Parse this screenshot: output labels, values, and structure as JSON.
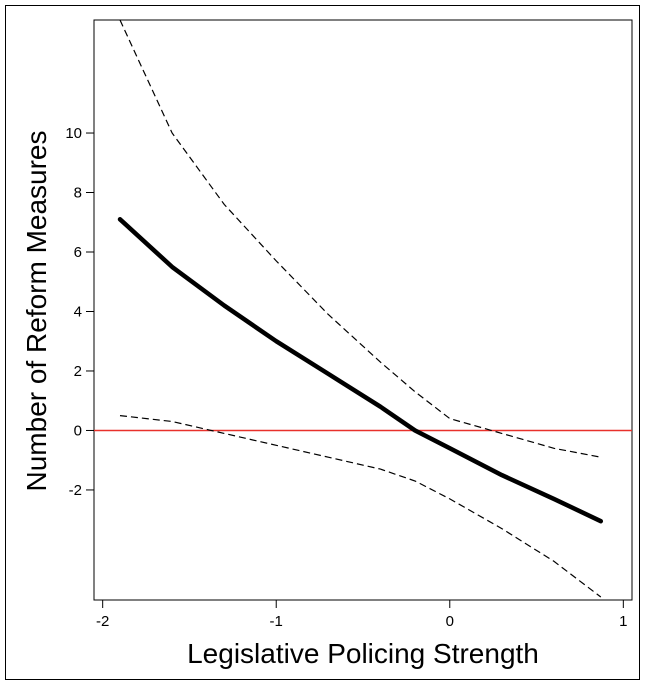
{
  "chart_data": {
    "type": "line",
    "title": "",
    "xlabel": "Legislative Policing Strength",
    "ylabel": "Number of Reform Measures",
    "xlim": [
      -2.05,
      1.05
    ],
    "ylim": [
      -5.7,
      13.8
    ],
    "x_ticks": [
      -2,
      -1,
      0,
      1
    ],
    "y_ticks": [
      -2,
      0,
      2,
      4,
      6,
      8,
      10
    ],
    "reference_line": {
      "y": 0,
      "color": "#e8312b"
    },
    "grid": false,
    "legend": "none",
    "x": [
      -1.9,
      -1.6,
      -1.3,
      -1.0,
      -0.7,
      -0.4,
      -0.2,
      0.0,
      0.3,
      0.6,
      0.87
    ],
    "series": [
      {
        "role": "estimate",
        "style": "solid",
        "color": "#000000",
        "values": [
          7.1,
          5.5,
          4.2,
          3.0,
          1.9,
          0.8,
          0.0,
          -0.6,
          -1.5,
          -2.3,
          -3.05
        ]
      },
      {
        "role": "upper_bound",
        "style": "dashed",
        "color": "#000000",
        "values": [
          13.8,
          10.0,
          7.6,
          5.7,
          3.9,
          2.3,
          1.3,
          0.4,
          -0.1,
          -0.6,
          -0.9
        ]
      },
      {
        "role": "lower_bound",
        "style": "dashed",
        "color": "#000000",
        "values": [
          0.5,
          0.3,
          -0.1,
          -0.5,
          -0.9,
          -1.3,
          -1.7,
          -2.3,
          -3.3,
          -4.4,
          -5.6
        ]
      }
    ]
  }
}
